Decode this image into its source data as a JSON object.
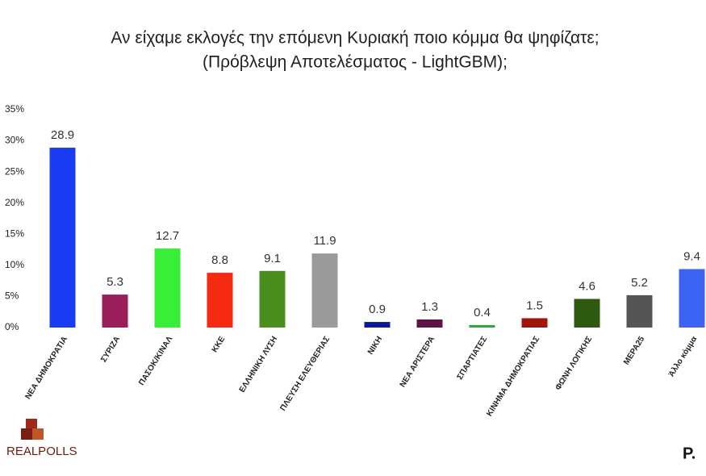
{
  "chart_data": {
    "type": "bar",
    "title": "Αν είχαμε εκλογές την επόμενη Κυριακή ποιο κόμμα θα ψηφίζατε;",
    "subtitle": "(Πρόβλεψη Αποτελέσματος - LightGBM);",
    "categories": [
      "ΝΕΑ ΔΗΜΟΚΡΑΤΙΑ",
      "ΣΥΡΙΖΑ",
      "ΠΑΣΟΚ/ΚΙΝΑΛ",
      "ΚΚΕ",
      "ΕΛΛΗΝΙΚΗ ΛΥΣΗ",
      "ΠΛΕΥΣΗ ΕΛΕΥΘΕΡΙΑΣ",
      "ΝΙΚΗ",
      "ΝΕΑ ΑΡΙΣΤΕΡΑ",
      "ΣΠΑΡΤΙΑΤΕΣ",
      "ΚΙΝΗΜΑ ΔΗΜΟΚΡΑΤΙΑΣ",
      "ΦΩΝΗ ΛΟΓΙΚΗΣ",
      "ΜΕΡΑ25",
      "Άλλο κόμμα"
    ],
    "values": [
      28.9,
      5.3,
      12.7,
      8.8,
      9.1,
      11.9,
      0.9,
      1.3,
      0.4,
      1.5,
      4.6,
      5.2,
      9.4
    ],
    "colors": [
      "#1a3cf5",
      "#9b1d5a",
      "#36ef36",
      "#f52a10",
      "#4a8f1e",
      "#9a9a9a",
      "#0a1a9a",
      "#5c1444",
      "#2fa83a",
      "#a0160c",
      "#2d5a10",
      "#555555",
      "#3d63f5"
    ],
    "ylim": [
      0,
      35
    ],
    "yticks": [
      {
        "value": 0,
        "label": "0%"
      },
      {
        "value": 5,
        "label": "5%"
      },
      {
        "value": 10,
        "label": "10%"
      },
      {
        "value": 15,
        "label": "15%"
      },
      {
        "value": 20,
        "label": "20%"
      },
      {
        "value": 25,
        "label": "25%"
      },
      {
        "value": 30,
        "label": "30%"
      },
      {
        "value": 35,
        "label": "35%"
      }
    ],
    "grid": false
  },
  "footer": {
    "left": "REALPOLLS",
    "right": "P."
  }
}
